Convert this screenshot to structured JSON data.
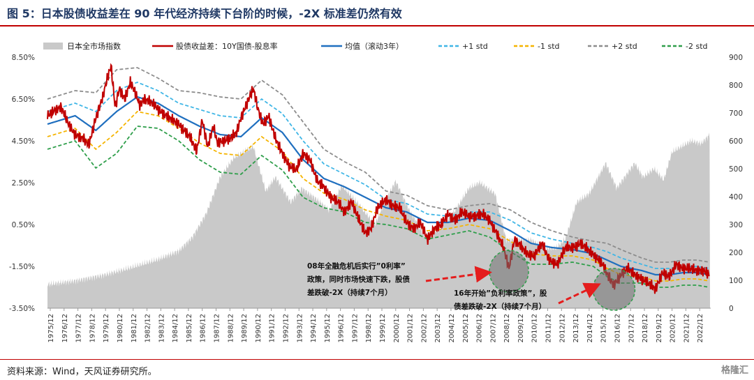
{
  "title": "图 5：日本股债收益差在 90 年代经济持续下台阶的时候，-2X 标准差仍然有效",
  "source": "资料来源：Wind，天风证券研究所。",
  "watermark": "格隆汇",
  "chart_data": {
    "type": "line",
    "left_axis": {
      "ticks": [
        "8.50%",
        "6.50%",
        "4.50%",
        "2.50%",
        "0.50%",
        "-1.50%",
        "-3.50%"
      ],
      "range": [
        -3.5,
        8.5
      ]
    },
    "right_axis": {
      "ticks": [
        "900",
        "800",
        "700",
        "600",
        "500",
        "400",
        "300",
        "200",
        "100",
        "0"
      ],
      "range": [
        0,
        900
      ]
    },
    "x_ticks": [
      "1975/12",
      "1976/12",
      "1977/12",
      "1978/12",
      "1979/12",
      "1980/12",
      "1981/12",
      "1982/12",
      "1983/12",
      "1984/12",
      "1985/12",
      "1986/12",
      "1987/12",
      "1988/12",
      "1989/12",
      "1990/12",
      "1991/12",
      "1992/12",
      "1993/12",
      "1994/12",
      "1995/12",
      "1996/12",
      "1997/12",
      "1998/12",
      "1999/12",
      "2000/12",
      "2001/12",
      "2002/12",
      "2003/12",
      "2004/12",
      "2005/12",
      "2006/12",
      "2007/12",
      "2008/12",
      "2009/12",
      "2010/12",
      "2011/12",
      "2012/12",
      "2013/12",
      "2014/12",
      "2015/12",
      "2016/12",
      "2017/12",
      "2018/12",
      "2019/12",
      "2020/12",
      "2021/12",
      "2022/12"
    ],
    "legend": [
      "日本全市场指数",
      "股债收益差：10Y国债-股息率",
      "均值（滚动3年）",
      "+1 std",
      "-1 std",
      "+2 std",
      "-2 std"
    ],
    "colors": {
      "index": "#c9c9c9",
      "spread": "#c00000",
      "mean": "#1f6fbf",
      "p1": "#3fb6e6",
      "m1": "#f5b400",
      "p2": "#8c8c8c",
      "m2": "#2e9e4a"
    },
    "index_series": {
      "t": [
        1975.0,
        1977.0,
        1979.0,
        1981.0,
        1983.0,
        1984.5,
        1985.5,
        1986.5,
        1987.5,
        1988.5,
        1989.9,
        1990.8,
        1991.5,
        1992.6,
        1993.4,
        1994.5,
        1995.4,
        1996.3,
        1997.4,
        1998.7,
        1999.5,
        2000.2,
        2001.2,
        2002.3,
        2003.3,
        2004.5,
        2005.5,
        2006.3,
        2007.4,
        2008.2,
        2009.0,
        2010.0,
        2011.0,
        2011.8,
        2012.5,
        2013.3,
        2014.2,
        2015.4,
        2016.2,
        2017.5,
        2018.1,
        2018.9,
        2019.6,
        2020.2,
        2020.9,
        2021.6,
        2022.3,
        2022.9
      ],
      "v": [
        85,
        98,
        118,
        145,
        175,
        205,
        255,
        340,
        470,
        540,
        580,
        420,
        470,
        380,
        430,
        390,
        350,
        440,
        380,
        300,
        390,
        455,
        350,
        260,
        280,
        350,
        430,
        450,
        410,
        245,
        245,
        245,
        215,
        215,
        250,
        380,
        410,
        520,
        430,
        520,
        470,
        500,
        460,
        560,
        580,
        600,
        590,
        620
      ]
    },
    "spread": {
      "t": [
        1975.0,
        1975.6,
        1976.0,
        1976.6,
        1977.0,
        1977.6,
        1978.0,
        1978.5,
        1979.0,
        1979.3,
        1979.6,
        1979.9,
        1980.2,
        1980.6,
        1981.0,
        1981.3,
        1981.7,
        1982.0,
        1982.6,
        1983.2,
        1983.8,
        1984.5,
        1985.3,
        1985.8,
        1986.2,
        1986.6,
        1987.0,
        1987.3,
        1987.7,
        1988.2,
        1988.7,
        1989.0,
        1989.5,
        1989.9,
        1990.2,
        1990.6,
        1991.0,
        1991.5,
        1992.0,
        1992.5,
        1993.0,
        1993.5,
        1994.0,
        1994.5,
        1995.0,
        1995.5,
        1996.0,
        1996.5,
        1997.0,
        1997.5,
        1998.0,
        1998.4,
        1998.9,
        1999.5,
        2000.0,
        2000.5,
        2001.0,
        2001.5,
        2002.0,
        2002.5,
        2003.0,
        2003.5,
        2004.0,
        2004.5,
        2005.0,
        2005.5,
        2006.0,
        2006.5,
        2007.0,
        2007.5,
        2008.0,
        2008.4,
        2008.8,
        2009.2,
        2009.7,
        2010.2,
        2010.8,
        2011.3,
        2011.9,
        2012.5,
        2013.0,
        2013.6,
        2014.1,
        2014.6,
        2015.1,
        2015.6,
        2016.0,
        2016.5,
        2017.0,
        2017.5,
        2018.0,
        2018.5,
        2019.0,
        2019.5,
        2020.0,
        2020.5,
        2021.0,
        2021.5,
        2022.0,
        2022.5,
        2022.9
      ],
      "v": [
        5.7,
        6.0,
        6.1,
        5.2,
        4.8,
        4.6,
        4.3,
        5.6,
        6.6,
        7.4,
        8.1,
        6.1,
        7.0,
        6.5,
        7.3,
        6.9,
        6.2,
        6.5,
        6.3,
        5.9,
        5.6,
        5.3,
        4.7,
        4.0,
        5.5,
        4.2,
        5.2,
        4.4,
        4.5,
        4.6,
        4.9,
        5.6,
        6.4,
        7.0,
        6.1,
        5.3,
        5.7,
        4.6,
        3.9,
        3.3,
        3.1,
        3.9,
        3.6,
        2.6,
        2.3,
        1.8,
        1.6,
        1.1,
        1.6,
        0.8,
        0.1,
        0.3,
        1.3,
        1.7,
        1.4,
        1.3,
        0.6,
        0.3,
        0.6,
        -0.2,
        0.3,
        0.5,
        1.0,
        0.7,
        1.1,
        0.9,
        0.9,
        1.0,
        0.7,
        0.1,
        -0.6,
        -1.6,
        -0.2,
        -0.5,
        -0.9,
        -1.0,
        -0.4,
        -1.2,
        -1.4,
        -0.6,
        -0.6,
        -0.4,
        -0.7,
        -1.0,
        -1.3,
        -2.0,
        -2.4,
        -1.9,
        -1.6,
        -1.9,
        -2.1,
        -2.3,
        -2.6,
        -1.8,
        -2.0,
        -1.4,
        -1.6,
        -1.6,
        -1.7,
        -1.7,
        -1.9
      ]
    },
    "band": {
      "t": [
        1975.0,
        1977.0,
        1978.5,
        1980.0,
        1981.5,
        1983.0,
        1984.5,
        1986.0,
        1987.5,
        1989.0,
        1990.5,
        1992.0,
        1993.5,
        1995.0,
        1996.5,
        1998.0,
        1999.5,
        2001.0,
        2002.5,
        2004.0,
        2005.5,
        2007.0,
        2008.5,
        2010.0,
        2011.5,
        2013.0,
        2014.5,
        2015.5,
        2016.5,
        2018.0,
        2019.0,
        2020.0,
        2021.0,
        2022.0,
        2022.9
      ],
      "mean": [
        5.3,
        5.7,
        5.0,
        5.9,
        6.6,
        6.3,
        5.7,
        5.2,
        4.8,
        4.7,
        5.6,
        4.9,
        3.6,
        2.7,
        2.3,
        1.8,
        1.3,
        1.1,
        0.6,
        0.6,
        0.8,
        0.7,
        0.2,
        -0.4,
        -0.6,
        -0.7,
        -0.9,
        -1.2,
        -1.5,
        -1.7,
        -1.9,
        -1.9,
        -1.8,
        -1.8,
        -1.9
      ],
      "std": [
        0.6,
        0.6,
        0.9,
        1.0,
        0.7,
        0.6,
        0.6,
        0.8,
        0.9,
        0.9,
        0.9,
        0.9,
        0.9,
        0.7,
        0.6,
        0.6,
        0.4,
        0.4,
        0.4,
        0.3,
        0.3,
        0.4,
        0.5,
        0.5,
        0.4,
        0.3,
        0.3,
        0.4,
        0.4,
        0.3,
        0.3,
        0.3,
        0.3,
        0.3,
        0.3
      ]
    },
    "annotations": [
      {
        "lines": [
          "08年全融危机后实行”0利率”",
          "政策，同时市场快速下跌，股债",
          "差跌破-2X（持续7个月）"
        ],
        "target_t": 2008.4,
        "target_v": -1.6
      },
      {
        "lines": [
          "16年开始”负利率政策”，股",
          "债差跌破-2X（持续7个月）"
        ],
        "target_t": 2016.0,
        "target_v": -2.4
      }
    ]
  }
}
